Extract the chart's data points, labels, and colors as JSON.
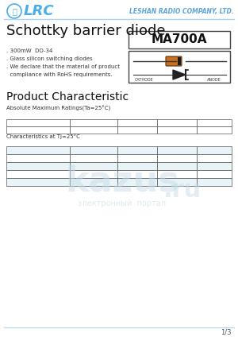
{
  "bg_color": "#ffffff",
  "header_line_color": "#aad4f5",
  "lrc_text": "LRC",
  "company_text": "LESHAN RADIO COMPANY, LTD.",
  "company_color": "#5ba3d9",
  "title": "Schottky barrier diode",
  "part_number": "MA700A",
  "bullets": [
    ". 300mW  DO-34",
    ". Glass silicon switching diodes",
    ". We declare that the material of product",
    "  compliance with RoHS requirements."
  ],
  "section_title": "Product Characteristic",
  "table1_label": "Absolute Maximum Ratings(Ta=25°C)",
  "table2_label": "Characteristics at Tj=25°C",
  "footer_text": "1/3",
  "table1_rows": 2,
  "table1_cols": 5,
  "table2_rows": 5,
  "table2_cols": 5,
  "table_border_color": "#555555",
  "table2_row_colors": [
    "#e8f4f8",
    "#ffffff",
    "#e8f4f8",
    "#ffffff",
    "#e8f4f8"
  ],
  "watermark_color": "#c8dde8"
}
